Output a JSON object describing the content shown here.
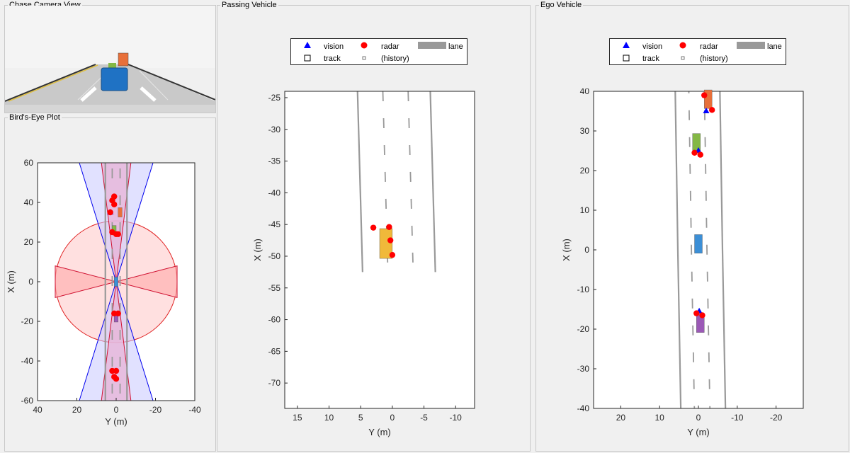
{
  "panels": {
    "chase_title": "Chase Camera View",
    "birdseye_title": "Bird's-Eye Plot",
    "passing_title": "Passing Vehicle",
    "ego_title": "Ego Vehicle"
  },
  "legend": {
    "vision": "vision",
    "radar": "radar",
    "lane": "lane",
    "track": "track",
    "history": "(history)"
  },
  "colors": {
    "vision": "#0000ff",
    "radar": "#ff0000",
    "lane": "#999999",
    "ego": "#3c8fd6",
    "passing": "#f0b93a",
    "lead_green": "#84b845",
    "lead_orange": "#e8703a",
    "rear_purple": "#9b59b6"
  },
  "chart_data": [
    {
      "id": "birdseye",
      "type": "scatter",
      "xlabel": "Y (m)",
      "ylabel": "X (m)",
      "xlim": [
        40,
        -40
      ],
      "ylim": [
        -60,
        60
      ],
      "xticks": [
        40,
        20,
        0,
        -20,
        -40
      ],
      "yticks": [
        60,
        40,
        20,
        0,
        -20,
        -40,
        -60
      ],
      "radar_detections": [
        [
          1,
          43
        ],
        [
          2,
          41
        ],
        [
          1,
          39
        ],
        [
          3,
          35
        ],
        [
          2,
          25
        ],
        [
          0,
          24
        ],
        [
          -1,
          24
        ],
        [
          1,
          -16
        ],
        [
          -1,
          -16
        ],
        [
          2,
          -45
        ],
        [
          0,
          -45
        ],
        [
          1,
          -48
        ],
        [
          0,
          -49
        ]
      ],
      "vision_detections": [
        [
          3,
          35
        ]
      ],
      "vehicles": [
        {
          "x": 0,
          "y": 0,
          "color": "ego"
        },
        {
          "x": 1,
          "y": 26,
          "color": "lead_green"
        },
        {
          "x": -2,
          "y": 35,
          "color": "lead_orange"
        },
        {
          "x": 0,
          "y": -18,
          "color": "rear_purple"
        }
      ]
    },
    {
      "id": "passing",
      "type": "scatter",
      "xlabel": "Y (m)",
      "ylabel": "X (m)",
      "xlim": [
        17,
        -13
      ],
      "ylim": [
        -74,
        -24
      ],
      "xticks": [
        15,
        10,
        5,
        0,
        -5,
        -10
      ],
      "yticks": [
        -25,
        -30,
        -35,
        -40,
        -45,
        -50,
        -55,
        -60,
        -65,
        -70
      ],
      "radar_detections": [
        [
          3,
          -45.5
        ],
        [
          0.5,
          -45.4
        ],
        [
          0.3,
          -47.5
        ],
        [
          0,
          -49.8
        ]
      ],
      "vision_detections": [],
      "vehicles": [
        {
          "x": 1,
          "y": -48,
          "color": "passing"
        }
      ]
    },
    {
      "id": "ego",
      "type": "scatter",
      "xlabel": "Y (m)",
      "ylabel": "X (m)",
      "xlim": [
        27,
        -27
      ],
      "ylim": [
        -40,
        40
      ],
      "xticks": [
        20,
        10,
        0,
        -10,
        -20
      ],
      "yticks": [
        40,
        30,
        20,
        10,
        0,
        -10,
        -20,
        -30,
        -40
      ],
      "radar_detections": [
        [
          -1.5,
          39
        ],
        [
          -3.5,
          35.3
        ],
        [
          1,
          24.5
        ],
        [
          -0.5,
          24
        ],
        [
          0.5,
          -16
        ],
        [
          -1,
          -16.5
        ]
      ],
      "vision_detections": [
        [
          -2,
          35
        ],
        [
          0,
          25
        ],
        [
          -0.2,
          -15.5
        ]
      ],
      "vehicles": [
        {
          "x": -2.5,
          "y": 38,
          "color": "lead_orange"
        },
        {
          "x": 0.5,
          "y": 27,
          "color": "lead_green"
        },
        {
          "x": 0,
          "y": 1.5,
          "color": "ego"
        },
        {
          "x": -0.5,
          "y": -18.5,
          "color": "rear_purple"
        }
      ]
    }
  ]
}
